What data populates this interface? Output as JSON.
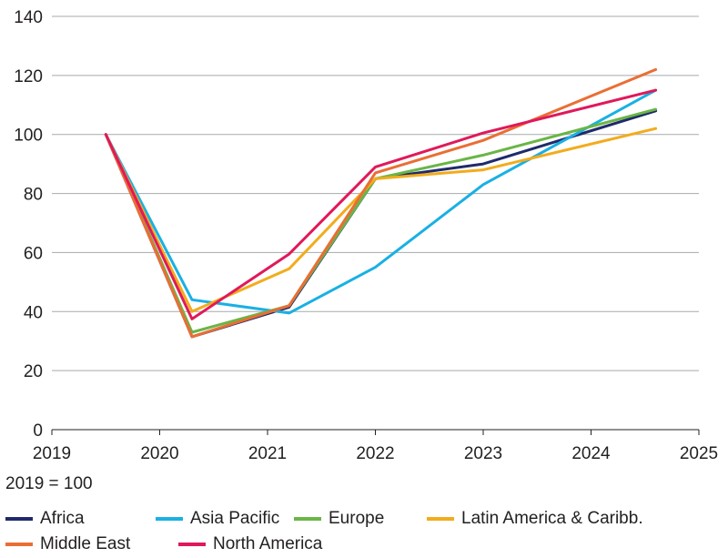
{
  "chart_data": {
    "type": "line",
    "x": [
      "2019",
      "2020",
      "2021",
      "2022",
      "2023",
      "2024",
      "2025"
    ],
    "note": "2019 = 100",
    "ylim": [
      0,
      140
    ],
    "y_ticks": [
      "0",
      "20",
      "40",
      "60",
      "80",
      "100",
      "120",
      "140"
    ],
    "grid": true,
    "legend_position": "bottom",
    "series": [
      {
        "name": "Africa",
        "color": "#1f2a6b",
        "values": [
          {
            "x": 2019.5,
            "y": 100
          },
          {
            "x": 2020.3,
            "y": 31.5
          },
          {
            "x": 2021.2,
            "y": 41.5
          },
          {
            "x": 2022.0,
            "y": 85
          },
          {
            "x": 2023.0,
            "y": 90
          },
          {
            "x": 2024.6,
            "y": 108
          }
        ]
      },
      {
        "name": "Asia Pacific",
        "color": "#1ab0e3",
        "values": [
          {
            "x": 2019.5,
            "y": 100
          },
          {
            "x": 2020.3,
            "y": 44
          },
          {
            "x": 2021.2,
            "y": 39.5
          },
          {
            "x": 2022.0,
            "y": 55
          },
          {
            "x": 2023.0,
            "y": 83
          },
          {
            "x": 2024.6,
            "y": 115
          }
        ]
      },
      {
        "name": "Europe",
        "color": "#6ab547",
        "values": [
          {
            "x": 2019.5,
            "y": 100
          },
          {
            "x": 2020.3,
            "y": 33
          },
          {
            "x": 2021.2,
            "y": 42
          },
          {
            "x": 2022.0,
            "y": 85
          },
          {
            "x": 2023.0,
            "y": 93
          },
          {
            "x": 2024.6,
            "y": 108.5
          }
        ]
      },
      {
        "name": "Latin America & Caribb.",
        "color": "#f2ac1c",
        "values": [
          {
            "x": 2019.5,
            "y": 100
          },
          {
            "x": 2020.3,
            "y": 40
          },
          {
            "x": 2021.2,
            "y": 54.5
          },
          {
            "x": 2022.0,
            "y": 85
          },
          {
            "x": 2023.0,
            "y": 88
          },
          {
            "x": 2024.6,
            "y": 102
          }
        ]
      },
      {
        "name": "Middle East",
        "color": "#ea6e34",
        "values": [
          {
            "x": 2019.5,
            "y": 100
          },
          {
            "x": 2020.3,
            "y": 31.5
          },
          {
            "x": 2021.2,
            "y": 42
          },
          {
            "x": 2022.0,
            "y": 87
          },
          {
            "x": 2023.0,
            "y": 98
          },
          {
            "x": 2024.6,
            "y": 122
          }
        ]
      },
      {
        "name": "North America",
        "color": "#e0195a",
        "values": [
          {
            "x": 2019.5,
            "y": 100
          },
          {
            "x": 2020.3,
            "y": 37.5
          },
          {
            "x": 2021.2,
            "y": 59.5
          },
          {
            "x": 2022.0,
            "y": 89
          },
          {
            "x": 2023.0,
            "y": 100.5
          },
          {
            "x": 2024.6,
            "y": 115
          }
        ]
      }
    ]
  }
}
